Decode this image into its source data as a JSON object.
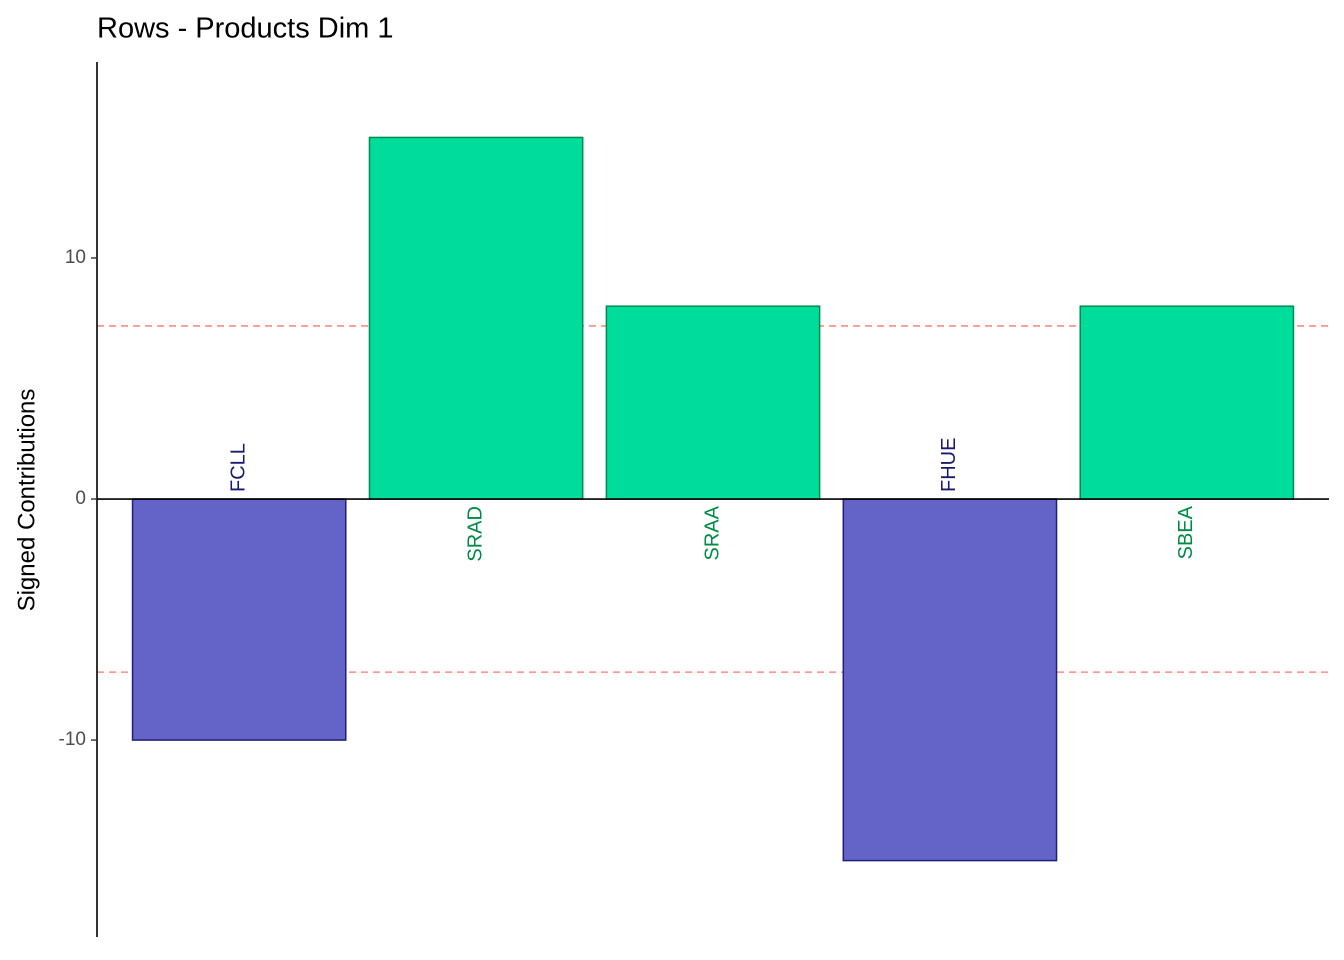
{
  "chart_data": {
    "type": "bar",
    "title": "Rows - Products Dim 1",
    "y_label": "Signed Contributions",
    "categories": [
      "FCLL",
      "SRAD",
      "SRAA",
      "FHUE",
      "SBEA"
    ],
    "values": [
      -10,
      15,
      8,
      -15,
      8
    ],
    "colors": [
      "#6464c8",
      "#00dc9a",
      "#00dc9a",
      "#6464c8",
      "#00dc9a"
    ],
    "border_colors": [
      "#1f1f78",
      "#008b50",
      "#008b50",
      "#1f1f78",
      "#008b50"
    ],
    "label_colors": [
      "#191970",
      "#008b45",
      "#008b45",
      "#191970",
      "#008b45"
    ],
    "reference_lines": [
      7.18,
      -7.18
    ],
    "reference_color": "#f8766d",
    "ylim": [
      -18.17,
      18.13
    ],
    "yticks": [
      -10,
      0,
      10
    ],
    "grid": false
  }
}
